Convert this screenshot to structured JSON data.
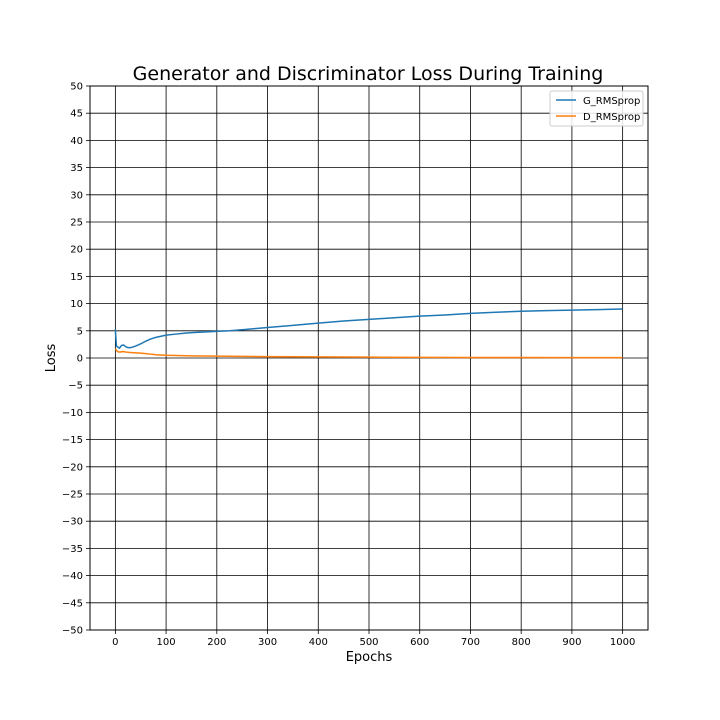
{
  "chart_data": {
    "type": "line",
    "title": "Generator and Discriminator Loss During Training",
    "xlabel": "Epochs",
    "ylabel": "Loss",
    "xlim": [
      -50,
      1050
    ],
    "ylim": [
      -50,
      50
    ],
    "xticks": [
      0,
      100,
      200,
      300,
      400,
      500,
      600,
      700,
      800,
      900,
      1000
    ],
    "yticks": [
      -50,
      -45,
      -40,
      -35,
      -30,
      -25,
      -20,
      -15,
      -10,
      -5,
      0,
      5,
      10,
      15,
      20,
      25,
      30,
      35,
      40,
      45,
      50
    ],
    "grid": true,
    "legend": "top-right",
    "series": [
      {
        "name": "G_RMSprop",
        "color": "#1f77b4",
        "x": [
          0,
          2,
          5,
          8,
          12,
          16,
          20,
          25,
          30,
          40,
          50,
          60,
          70,
          80,
          90,
          100,
          120,
          140,
          160,
          180,
          200,
          225,
          250,
          275,
          300,
          350,
          400,
          450,
          500,
          550,
          600,
          650,
          700,
          750,
          800,
          850,
          900,
          950,
          1000
        ],
        "y": [
          5.3,
          2.2,
          2.0,
          1.8,
          2.3,
          2.4,
          2.1,
          1.9,
          1.9,
          2.2,
          2.6,
          3.1,
          3.5,
          3.8,
          4.0,
          4.2,
          4.4,
          4.6,
          4.7,
          4.8,
          4.9,
          5.0,
          5.2,
          5.4,
          5.6,
          6.0,
          6.4,
          6.8,
          7.1,
          7.4,
          7.7,
          7.9,
          8.2,
          8.4,
          8.6,
          8.7,
          8.8,
          8.9,
          9.0
        ]
      },
      {
        "name": "D_RMSprop",
        "color": "#ff7f0e",
        "x": [
          0,
          3,
          6,
          10,
          15,
          20,
          30,
          40,
          50,
          60,
          70,
          80,
          100,
          150,
          200,
          250,
          300,
          400,
          500,
          600,
          700,
          800,
          900,
          1000
        ],
        "y": [
          1.7,
          1.3,
          1.1,
          1.1,
          1.2,
          1.1,
          1.0,
          0.95,
          0.9,
          0.8,
          0.7,
          0.6,
          0.5,
          0.4,
          0.35,
          0.3,
          0.25,
          0.2,
          0.15,
          0.12,
          0.1,
          0.08,
          0.07,
          0.06
        ]
      }
    ]
  }
}
